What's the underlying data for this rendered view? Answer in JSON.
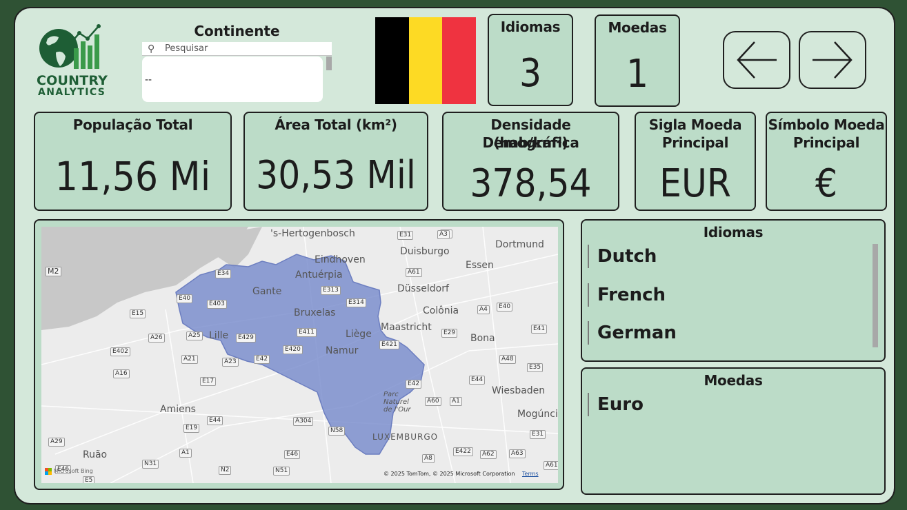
{
  "logo": {
    "line1": "COUNTRY",
    "line2": "ANALYTICS"
  },
  "slicer": {
    "title": "Continente",
    "search_placeholder": "Pesquisar",
    "selected_value": "--"
  },
  "flag": {
    "colors": [
      "#000000",
      "#fdda24",
      "#ef3340"
    ]
  },
  "nav": {
    "back_icon": "arrow-left-icon",
    "forward_icon": "arrow-right-icon"
  },
  "header_cards": {
    "idiomas": {
      "title": "Idiomas",
      "value": "3"
    },
    "moedas": {
      "title": "Moedas",
      "value": "1"
    }
  },
  "kpis": {
    "populacao": {
      "title": "População Total",
      "value": "11,56 Mi"
    },
    "area": {
      "title": "Área Total (km²)",
      "value": "30,53 Mil"
    },
    "densidade": {
      "title_line1": "Densidade Demográfica",
      "title_line2": "(hab/km²)",
      "value": "378,54"
    },
    "sigla": {
      "title_line1": "Sigla Moeda",
      "title_line2": "Principal",
      "value": "EUR"
    },
    "simbolo": {
      "title_line1": "Símbolo Moeda",
      "title_line2": "Principal",
      "value": "€"
    }
  },
  "map": {
    "labels": {
      "hertogenbosch": "'s-Hertogenbosch",
      "duisburgo": "Duisburgo",
      "dortmund": "Dortmund",
      "eindhoven": "Eindhoven",
      "essen": "Essen",
      "antuerpia": "Antuérpia",
      "gante": "Gante",
      "dusseldorf": "Düsseldorf",
      "colonia": "Colônia",
      "bruxelas": "Bruxelas",
      "maastricht": "Maastricht",
      "liege": "Liège",
      "lille": "Lille",
      "namur": "Namur",
      "bona": "Bona",
      "wiesbaden": "Wiesbaden",
      "amiens": "Amiens",
      "mogunica": "Mogúncia",
      "luxemburgo": "LUXEMBURGO",
      "ruao": "Ruão",
      "naturel": "Parc Naturel de l'Our",
      "m2": "M2"
    },
    "roads": [
      "A3",
      "E31",
      "A3",
      "A61",
      "E34",
      "E313",
      "E314",
      "A4",
      "E40",
      "E40",
      "E403",
      "E15",
      "E411",
      "A26",
      "A25",
      "E429",
      "E421",
      "E29",
      "E41",
      "E402",
      "A21",
      "A23",
      "E42",
      "E420",
      "A48",
      "E17",
      "E35",
      "A16",
      "E44",
      "E42",
      "A60",
      "A1",
      "E44",
      "E19",
      "A304",
      "N58",
      "E31",
      "A29",
      "E46",
      "E422",
      "A62",
      "A63",
      "A1",
      "N31",
      "N2",
      "N51",
      "A8",
      "A61",
      "E46",
      "E5"
    ],
    "bing": "Microsoft Bing",
    "copyright": "© 2025 TomTom, © 2025 Microsoft Corporation",
    "terms": "Terms"
  },
  "idiomas_list": {
    "title": "Idiomas",
    "items": [
      "Dutch",
      "French",
      "German"
    ]
  },
  "moedas_list": {
    "title": "Moedas",
    "items": [
      "Euro"
    ]
  }
}
